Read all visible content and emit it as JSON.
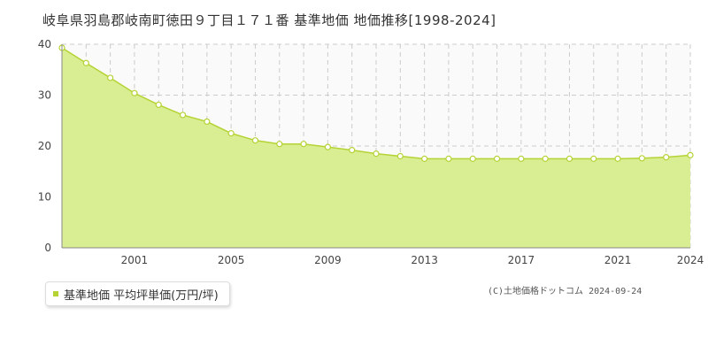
{
  "chart_data": {
    "type": "area",
    "title": "岐阜県羽島郡岐南町徳田９丁目１７１番 基準地価 地価推移[1998-2024]",
    "xlabel": "",
    "ylabel": "",
    "x": [
      1998,
      1999,
      2000,
      2001,
      2002,
      2003,
      2004,
      2005,
      2006,
      2007,
      2008,
      2009,
      2010,
      2011,
      2012,
      2013,
      2014,
      2015,
      2016,
      2017,
      2018,
      2019,
      2020,
      2021,
      2022,
      2023,
      2024
    ],
    "series": [
      {
        "name": "基準地価 平均坪単価(万円/坪)",
        "values": [
          39.3,
          36.3,
          33.4,
          30.4,
          28.1,
          26.1,
          24.8,
          22.5,
          21.1,
          20.4,
          20.4,
          19.8,
          19.2,
          18.5,
          18.0,
          17.5,
          17.5,
          17.5,
          17.5,
          17.5,
          17.5,
          17.5,
          17.5,
          17.5,
          17.6,
          17.8,
          18.2
        ]
      }
    ],
    "ylim": [
      0,
      40
    ],
    "yticks": [
      0,
      10,
      20,
      30,
      40
    ],
    "xticks": [
      2001,
      2005,
      2009,
      2013,
      2017,
      2021,
      2024
    ],
    "grid": true,
    "legend": "bottom-left",
    "colors": {
      "fill": "#d9ed92",
      "line": "#b5d334",
      "point_fill": "#ffffff",
      "grid": "#cccccc",
      "plot_bg": "#fafafa"
    }
  },
  "legend": {
    "label": "基準地価 平均坪単価(万円/坪)"
  },
  "footer": {
    "copyright": "(C)土地価格ドットコム 2024-09-24"
  }
}
